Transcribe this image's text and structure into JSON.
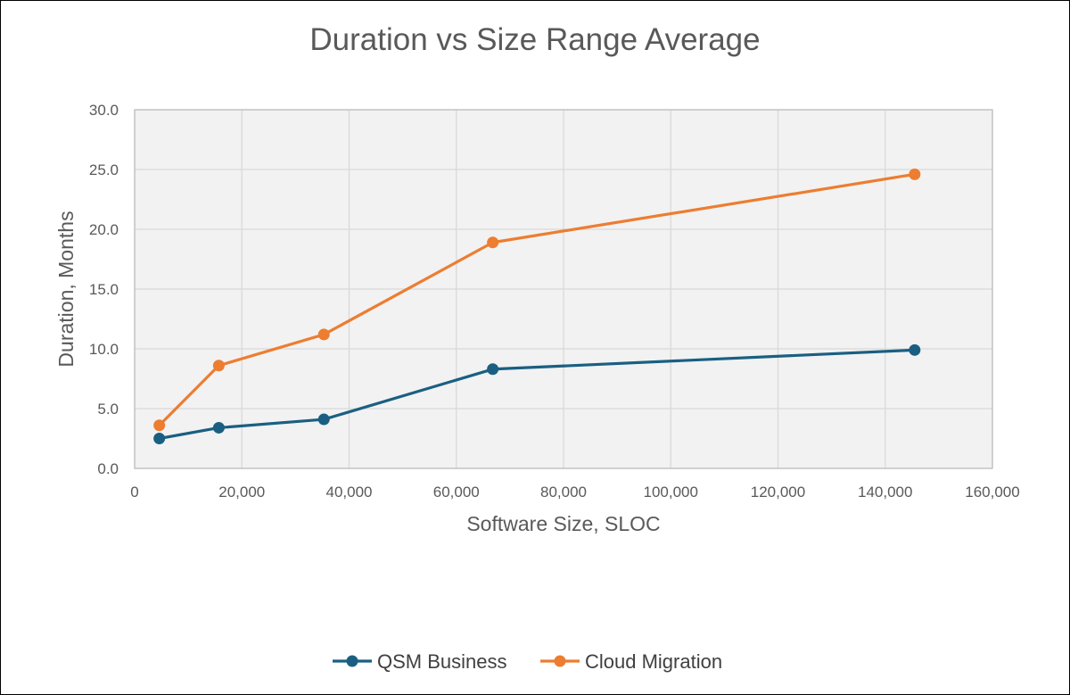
{
  "chart_data": {
    "type": "line",
    "title": "Duration vs Size Range Average",
    "xlabel": "Software Size, SLOC",
    "ylabel": "Duration, Months",
    "xlim": [
      0,
      160000
    ],
    "ylim": [
      0,
      30
    ],
    "xticks": [
      "0",
      "20,000",
      "40,000",
      "60,000",
      "80,000",
      "100,000",
      "120,000",
      "140,000",
      "160,000"
    ],
    "yticks": [
      "0.0",
      "5.0",
      "10.0",
      "15.0",
      "20.0",
      "25.0",
      "30.0"
    ],
    "grid": true,
    "legend_position": "bottom",
    "series": [
      {
        "name": "QSM Business",
        "color": "#1a5f82",
        "x": [
          4600,
          15700,
          35300,
          66800,
          145500
        ],
        "y": [
          2.5,
          3.4,
          4.1,
          8.3,
          9.9
        ]
      },
      {
        "name": "Cloud Migration",
        "color": "#ed7d31",
        "x": [
          4600,
          15700,
          35300,
          66800,
          145500
        ],
        "y": [
          3.6,
          8.6,
          11.2,
          18.9,
          24.6
        ]
      }
    ]
  }
}
